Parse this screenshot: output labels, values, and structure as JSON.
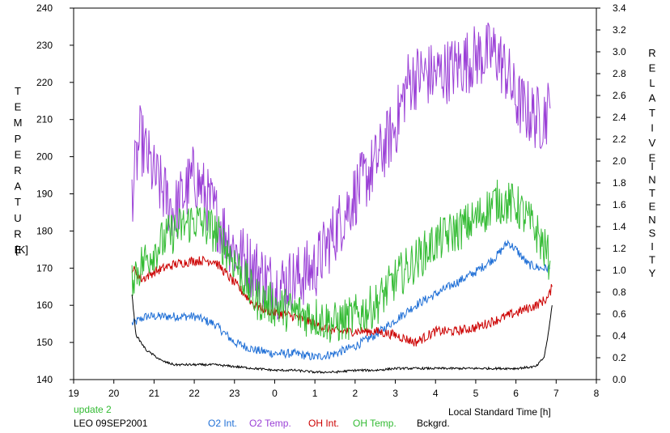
{
  "chart_data": {
    "type": "line",
    "ylabel_left": "TEMPERATURE",
    "ylabel_left_unit": "[K]",
    "ylabel_right": "RELATIVE INTENSITY",
    "xlabel": "Local Standard Time [h]",
    "xlim": [
      19,
      32
    ],
    "ylim_left": [
      140,
      240
    ],
    "ylim_right": [
      0.0,
      3.4
    ],
    "grid": false,
    "x_ticks": [
      {
        "v": 19,
        "label": "19"
      },
      {
        "v": 20,
        "label": "20"
      },
      {
        "v": 21,
        "label": "21"
      },
      {
        "v": 22,
        "label": "22"
      },
      {
        "v": 23,
        "label": "23"
      },
      {
        "v": 24,
        "label": "0"
      },
      {
        "v": 25,
        "label": "1"
      },
      {
        "v": 26,
        "label": "2"
      },
      {
        "v": 27,
        "label": "3"
      },
      {
        "v": 28,
        "label": "4"
      },
      {
        "v": 29,
        "label": "5"
      },
      {
        "v": 30,
        "label": "6"
      },
      {
        "v": 31,
        "label": "7"
      },
      {
        "v": 32,
        "label": "8"
      }
    ],
    "y_left_ticks": [
      "140",
      "150",
      "160",
      "170",
      "180",
      "190",
      "200",
      "210",
      "220",
      "230",
      "240"
    ],
    "y_right_ticks": [
      "0.0",
      "0.2",
      "0.4",
      "0.6",
      "0.8",
      "1.0",
      "1.2",
      "1.4",
      "1.6",
      "1.8",
      "2.0",
      "2.2",
      "2.4",
      "2.6",
      "2.8",
      "3.0",
      "3.2",
      "3.4"
    ],
    "annotation": "update 2",
    "station": "LEO 09SEP2001",
    "series": [
      {
        "name": "O2 Int.",
        "axis": "left",
        "color": "#1f6fd6",
        "jitter": 1.2,
        "points": [
          [
            20.45,
            155
          ],
          [
            20.8,
            157
          ],
          [
            21.2,
            157
          ],
          [
            21.6,
            157
          ],
          [
            22,
            157
          ],
          [
            22.5,
            155
          ],
          [
            23,
            150
          ],
          [
            23.5,
            148
          ],
          [
            24,
            147
          ],
          [
            24.5,
            147
          ],
          [
            25,
            146
          ],
          [
            25.5,
            147
          ],
          [
            26,
            149
          ],
          [
            26.5,
            152
          ],
          [
            27,
            156
          ],
          [
            27.5,
            160
          ],
          [
            28,
            163
          ],
          [
            28.5,
            166
          ],
          [
            29,
            169
          ],
          [
            29.5,
            173
          ],
          [
            29.8,
            177
          ],
          [
            30,
            175
          ],
          [
            30.3,
            171
          ],
          [
            30.6,
            170
          ],
          [
            30.85,
            170
          ]
        ]
      },
      {
        "name": "O2 Temp.",
        "axis": "left",
        "color": "#9a3fd6",
        "jitter": 9,
        "points": [
          [
            20.45,
            190
          ],
          [
            20.65,
            205
          ],
          [
            21,
            195
          ],
          [
            21.5,
            185
          ],
          [
            22,
            195
          ],
          [
            22.5,
            185
          ],
          [
            23,
            175
          ],
          [
            23.5,
            170
          ],
          [
            24,
            165
          ],
          [
            24.5,
            167
          ],
          [
            25,
            170
          ],
          [
            25.5,
            180
          ],
          [
            26,
            190
          ],
          [
            26.5,
            198
          ],
          [
            27,
            208
          ],
          [
            27.3,
            220
          ],
          [
            27.6,
            222
          ],
          [
            28,
            222
          ],
          [
            28.5,
            224
          ],
          [
            29,
            227
          ],
          [
            29.5,
            228
          ],
          [
            29.8,
            222
          ],
          [
            30,
            215
          ],
          [
            30.3,
            212
          ],
          [
            30.6,
            210
          ],
          [
            30.85,
            213
          ]
        ]
      },
      {
        "name": "OH Int.",
        "axis": "left",
        "color": "#cc0000",
        "jitter": 1.3,
        "points": [
          [
            20.45,
            170
          ],
          [
            20.7,
            167
          ],
          [
            21,
            169
          ],
          [
            21.5,
            171
          ],
          [
            22,
            172
          ],
          [
            22.5,
            172
          ],
          [
            23,
            166
          ],
          [
            23.5,
            160
          ],
          [
            24,
            158
          ],
          [
            24.5,
            157
          ],
          [
            25,
            155
          ],
          [
            25.5,
            153
          ],
          [
            26,
            153
          ],
          [
            26.5,
            153
          ],
          [
            27,
            152
          ],
          [
            27.5,
            150
          ],
          [
            28,
            153
          ],
          [
            28.5,
            153
          ],
          [
            29,
            154
          ],
          [
            29.5,
            156
          ],
          [
            30,
            158
          ],
          [
            30.5,
            160
          ],
          [
            30.8,
            162
          ],
          [
            30.9,
            165
          ]
        ]
      },
      {
        "name": "OH Temp.",
        "axis": "left",
        "color": "#33bb33",
        "jitter": 6,
        "points": [
          [
            20.45,
            168
          ],
          [
            21,
            175
          ],
          [
            21.5,
            180
          ],
          [
            22,
            183
          ],
          [
            22.5,
            180
          ],
          [
            23,
            172
          ],
          [
            23.5,
            162
          ],
          [
            24,
            160
          ],
          [
            24.5,
            158
          ],
          [
            25,
            157
          ],
          [
            25.5,
            155
          ],
          [
            26,
            157
          ],
          [
            26.5,
            160
          ],
          [
            27,
            167
          ],
          [
            27.5,
            172
          ],
          [
            28,
            177
          ],
          [
            28.5,
            180
          ],
          [
            29,
            183
          ],
          [
            29.5,
            188
          ],
          [
            30,
            187
          ],
          [
            30.5,
            180
          ],
          [
            30.85,
            172
          ]
        ]
      },
      {
        "name": "Bckgrd.",
        "axis": "left",
        "color": "#000000",
        "jitter": 0.3,
        "points": [
          [
            20.45,
            163
          ],
          [
            20.55,
            152
          ],
          [
            20.8,
            148
          ],
          [
            21.2,
            145
          ],
          [
            21.5,
            144
          ],
          [
            22,
            144
          ],
          [
            22.5,
            144
          ],
          [
            23,
            143.5
          ],
          [
            23.5,
            143
          ],
          [
            24,
            142.5
          ],
          [
            24.5,
            142.5
          ],
          [
            25,
            142
          ],
          [
            25.5,
            142
          ],
          [
            26,
            142.5
          ],
          [
            26.5,
            142.5
          ],
          [
            27,
            143
          ],
          [
            27.5,
            143
          ],
          [
            28,
            143
          ],
          [
            28.5,
            143
          ],
          [
            29,
            143
          ],
          [
            29.5,
            143
          ],
          [
            30,
            143
          ],
          [
            30.5,
            143.5
          ],
          [
            30.7,
            146
          ],
          [
            30.8,
            152
          ],
          [
            30.9,
            160
          ]
        ]
      }
    ]
  }
}
